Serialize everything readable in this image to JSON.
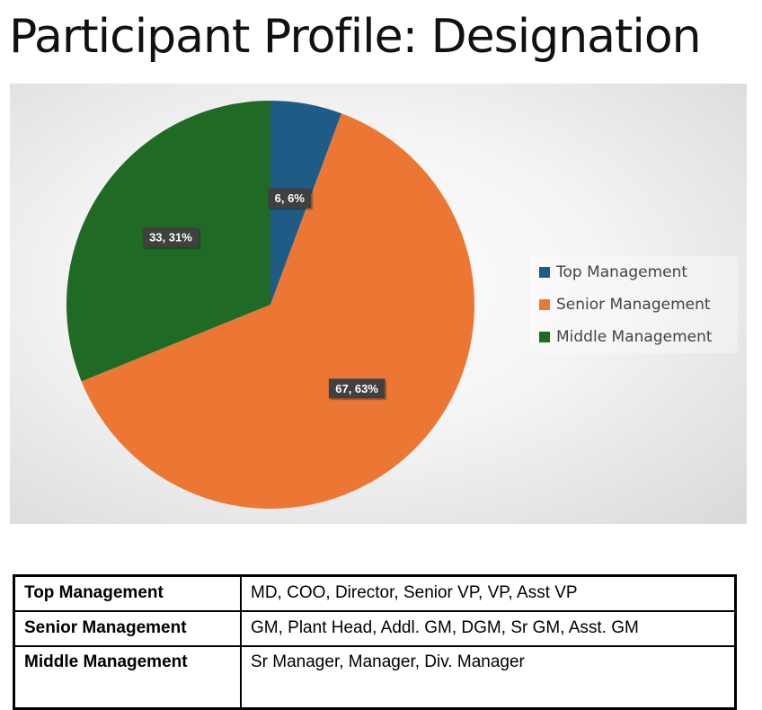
{
  "title": "Participant Profile: Designation",
  "chart_data": {
    "type": "pie",
    "title": "",
    "slices": [
      {
        "name": "Top Management",
        "value": 6,
        "percent": 6,
        "label": "6, 6%",
        "color": "#1f5c85"
      },
      {
        "name": "Senior Management",
        "value": 67,
        "percent": 63,
        "label": "67, 63%",
        "color": "#ec7734"
      },
      {
        "name": "Middle Management",
        "value": 33,
        "percent": 31,
        "label": "33, 31%",
        "color": "#1f6b25"
      }
    ],
    "legend_position": "right"
  },
  "table": {
    "rows": [
      {
        "category": "Top Management",
        "roles": "MD, COO, Director, Senior VP, VP, Asst VP"
      },
      {
        "category": "Senior Management",
        "roles": "GM, Plant Head, Addl. GM, DGM, Sr GM, Asst. GM"
      },
      {
        "category": "Middle Management",
        "roles": "Sr Manager, Manager, Div. Manager"
      }
    ]
  }
}
